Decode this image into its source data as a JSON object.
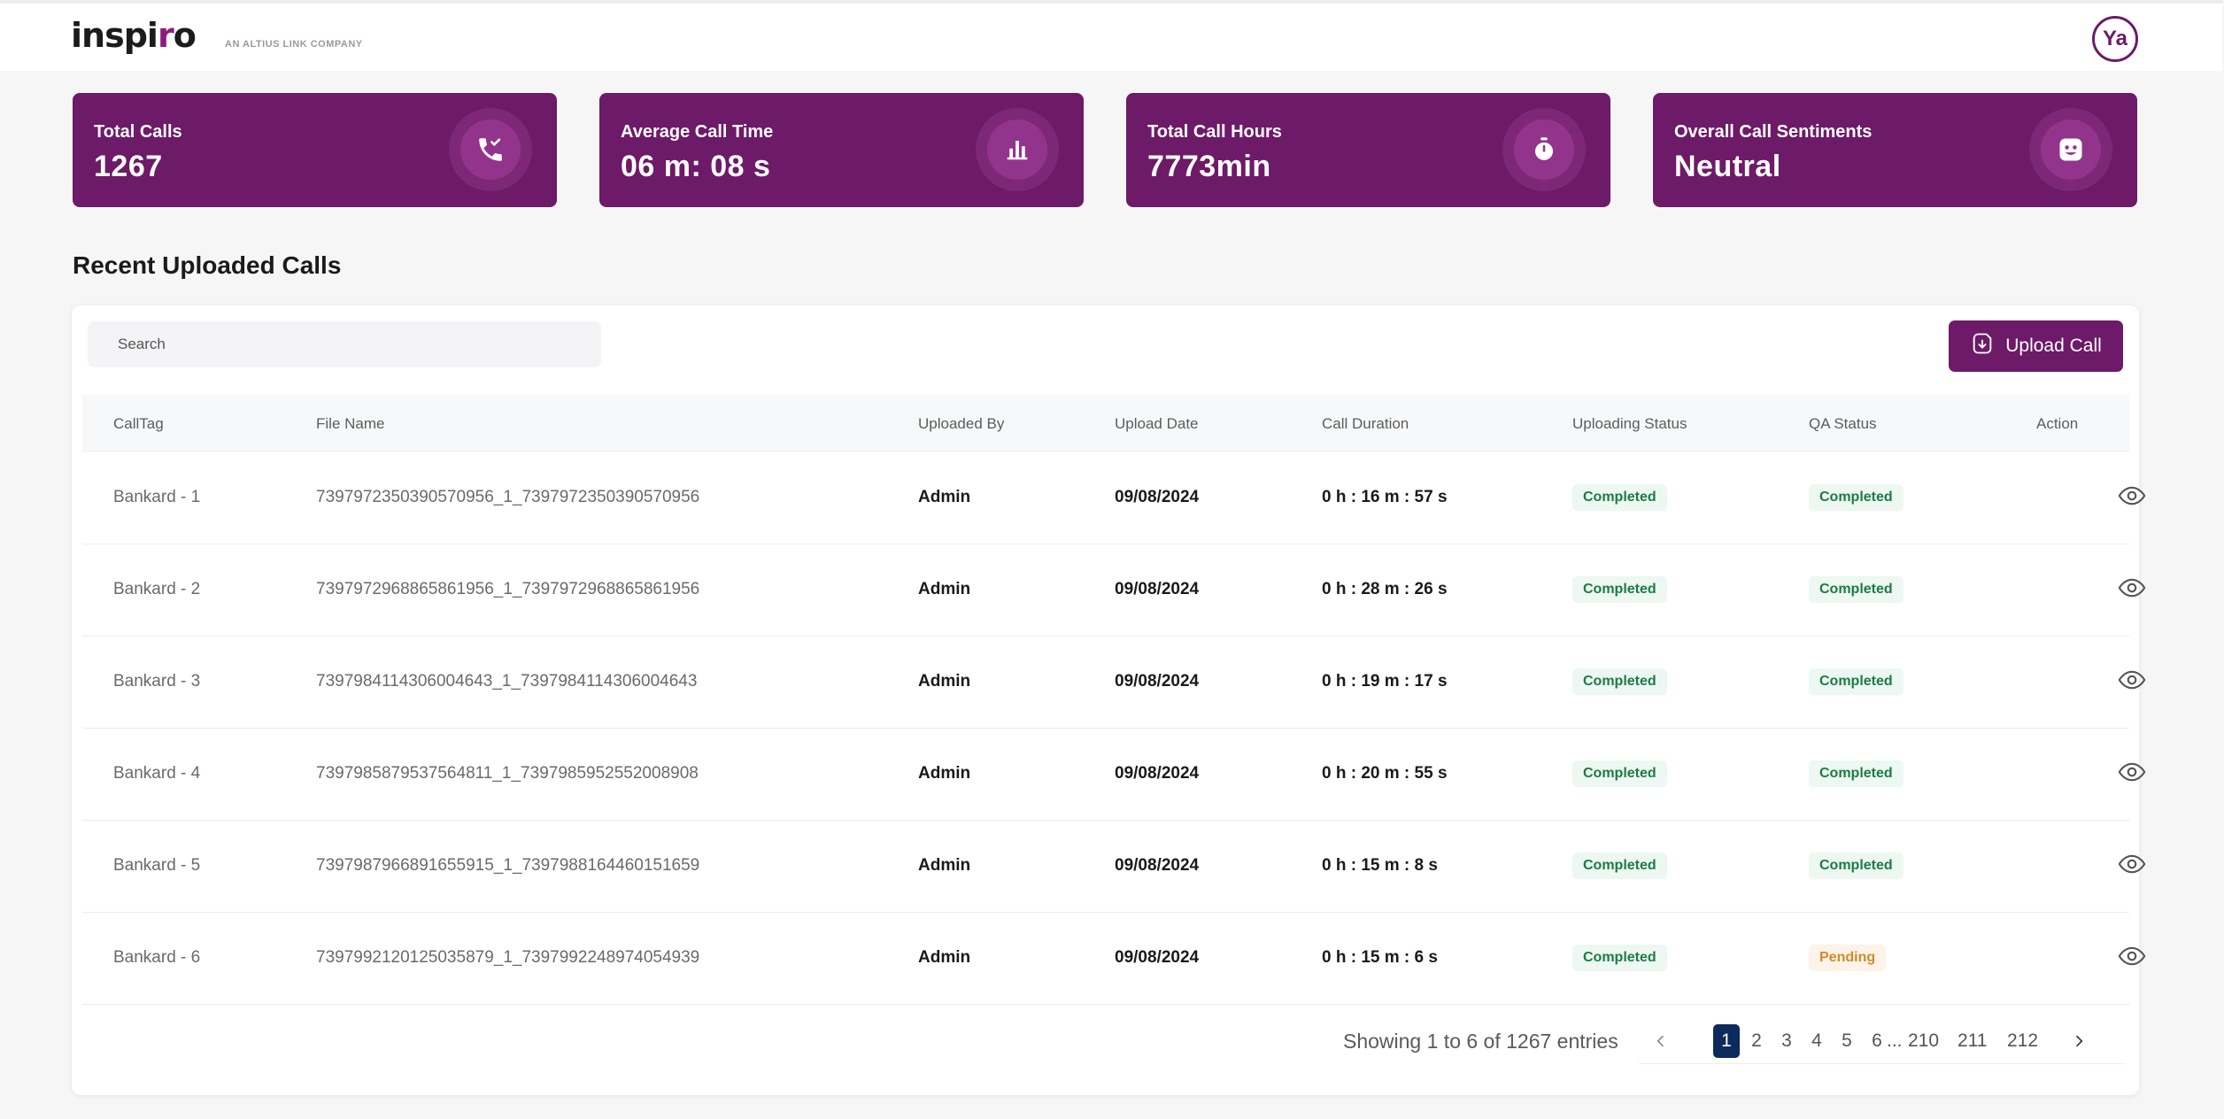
{
  "brand": {
    "logo_text_1": "inspi",
    "logo_text_2": "r",
    "logo_text_3": "o",
    "subtitle": "AN ALTIUS LINK COMPANY",
    "accent_color": "#6d1a68"
  },
  "user": {
    "initials": "Ya"
  },
  "stats": [
    {
      "title": "Total Calls",
      "value": "1267",
      "icon": "phone-check-icon"
    },
    {
      "title": "Average Call Time",
      "value": "06 m: 08 s",
      "icon": "bar-chart-icon"
    },
    {
      "title": "Total Call Hours",
      "value": "7773min",
      "icon": "stopwatch-icon"
    },
    {
      "title": "Overall Call Sentiments",
      "value": "Neutral",
      "icon": "smiley-icon"
    }
  ],
  "section_title": "Recent Uploaded Calls",
  "search": {
    "placeholder": "Search"
  },
  "upload_button": {
    "label": "Upload Call",
    "icon": "upload-file-icon"
  },
  "table": {
    "headers": [
      "CallTag",
      "File Name",
      "Uploaded By",
      "Upload Date",
      "Call Duration",
      "Uploading Status",
      "QA Status",
      "Action"
    ],
    "rows": [
      {
        "tag": "Bankard - 1",
        "file": "7397972350390570956_1_7397972350390570956",
        "by": "Admin",
        "date": "09/08/2024",
        "duration": "0 h : 16 m : 57 s",
        "upload_status": "Completed",
        "qa_status": "Completed"
      },
      {
        "tag": "Bankard - 2",
        "file": "7397972968865861956_1_7397972968865861956",
        "by": "Admin",
        "date": "09/08/2024",
        "duration": "0 h : 28 m : 26 s",
        "upload_status": "Completed",
        "qa_status": "Completed"
      },
      {
        "tag": "Bankard - 3",
        "file": "7397984114306004643_1_7397984114306004643",
        "by": "Admin",
        "date": "09/08/2024",
        "duration": "0 h : 19 m : 17 s",
        "upload_status": "Completed",
        "qa_status": "Completed"
      },
      {
        "tag": "Bankard - 4",
        "file": "7397985879537564811_1_7397985952552008908",
        "by": "Admin",
        "date": "09/08/2024",
        "duration": "0 h : 20 m : 55 s",
        "upload_status": "Completed",
        "qa_status": "Completed"
      },
      {
        "tag": "Bankard - 5",
        "file": "7397987966891655915_1_7397988164460151659",
        "by": "Admin",
        "date": "09/08/2024",
        "duration": "0 h : 15 m : 8 s",
        "upload_status": "Completed",
        "qa_status": "Completed"
      },
      {
        "tag": "Bankard - 6",
        "file": "7397992120125035879_1_7397992248974054939",
        "by": "Admin",
        "date": "09/08/2024",
        "duration": "0 h : 15 m : 6 s",
        "upload_status": "Completed",
        "qa_status": "Pending"
      }
    ]
  },
  "pagination": {
    "summary": "Showing 1 to 6 of 1267 entries",
    "pages": [
      "1",
      "2",
      "3",
      "4",
      "5",
      "6",
      "...",
      "210",
      "211",
      "212"
    ],
    "current": "1"
  }
}
